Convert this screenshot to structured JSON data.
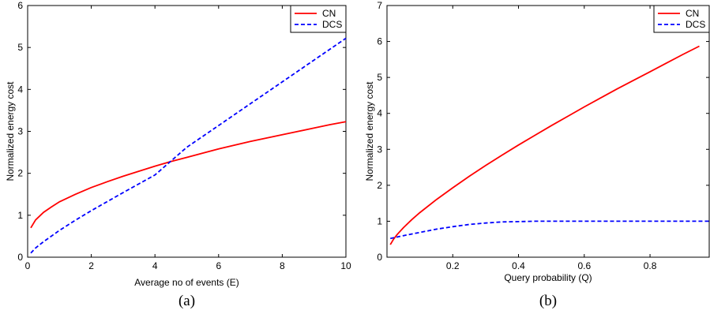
{
  "chart_data": [
    {
      "type": "line",
      "caption": "(a)",
      "xlabel": "Average no of events (E)",
      "ylabel": "Normalized energy cost",
      "xlim": [
        0,
        10
      ],
      "ylim": [
        0,
        6
      ],
      "xticks": [
        0,
        2,
        4,
        6,
        8,
        10
      ],
      "yticks": [
        0,
        1,
        2,
        3,
        4,
        5,
        6
      ],
      "grid": false,
      "legend_position": "top-right",
      "series": [
        {
          "name": "CN",
          "color": "#ff0000",
          "style": "solid",
          "x": [
            0.1,
            0.25,
            0.5,
            0.75,
            1,
            1.5,
            2,
            2.5,
            3,
            3.5,
            4,
            4.5,
            5,
            5.5,
            6,
            6.5,
            7,
            7.5,
            8,
            8.5,
            9,
            9.5,
            10
          ],
          "y": [
            0.7,
            0.89,
            1.07,
            1.2,
            1.32,
            1.5,
            1.66,
            1.8,
            1.93,
            2.05,
            2.17,
            2.28,
            2.38,
            2.48,
            2.58,
            2.67,
            2.76,
            2.84,
            2.92,
            3.0,
            3.08,
            3.16,
            3.23
          ]
        },
        {
          "name": "DCS",
          "color": "#0000ff",
          "style": "dashed",
          "x": [
            0.1,
            0.25,
            0.5,
            1,
            1.5,
            2,
            3,
            4,
            5,
            6,
            7,
            8,
            9,
            10
          ],
          "y": [
            0.1,
            0.22,
            0.37,
            0.64,
            0.88,
            1.11,
            1.54,
            1.96,
            2.62,
            3.14,
            3.66,
            4.18,
            4.7,
            5.22
          ]
        }
      ]
    },
    {
      "type": "line",
      "caption": "(b)",
      "xlabel": "Query probability (Q)",
      "ylabel": "Normalized energy cost",
      "xlim": [
        0,
        0.98
      ],
      "ylim": [
        0,
        7
      ],
      "xticks": [
        0.2,
        0.4,
        0.6,
        0.8
      ],
      "yticks": [
        0,
        1,
        2,
        3,
        4,
        5,
        6,
        7
      ],
      "grid": false,
      "legend_position": "top-right",
      "series": [
        {
          "name": "CN",
          "color": "#ff0000",
          "style": "solid",
          "x": [
            0.01,
            0.02,
            0.03,
            0.05,
            0.075,
            0.1,
            0.15,
            0.2,
            0.25,
            0.3,
            0.35,
            0.4,
            0.45,
            0.5,
            0.55,
            0.6,
            0.65,
            0.7,
            0.75,
            0.8,
            0.85,
            0.9,
            0.95
          ],
          "y": [
            0.35,
            0.5,
            0.62,
            0.82,
            1.04,
            1.24,
            1.6,
            1.93,
            2.25,
            2.55,
            2.84,
            3.12,
            3.39,
            3.66,
            3.92,
            4.18,
            4.43,
            4.68,
            4.92,
            5.16,
            5.4,
            5.64,
            5.87
          ]
        },
        {
          "name": "DCS",
          "color": "#0000ff",
          "style": "dashed",
          "x": [
            0.01,
            0.05,
            0.1,
            0.15,
            0.2,
            0.25,
            0.3,
            0.35,
            0.4,
            0.45,
            0.5,
            0.6,
            0.7,
            0.8,
            0.9,
            0.98
          ],
          "y": [
            0.52,
            0.6,
            0.69,
            0.78,
            0.85,
            0.91,
            0.95,
            0.98,
            0.99,
            1.0,
            1.0,
            1.0,
            1.0,
            1.0,
            1.0,
            1.0
          ]
        }
      ]
    }
  ]
}
